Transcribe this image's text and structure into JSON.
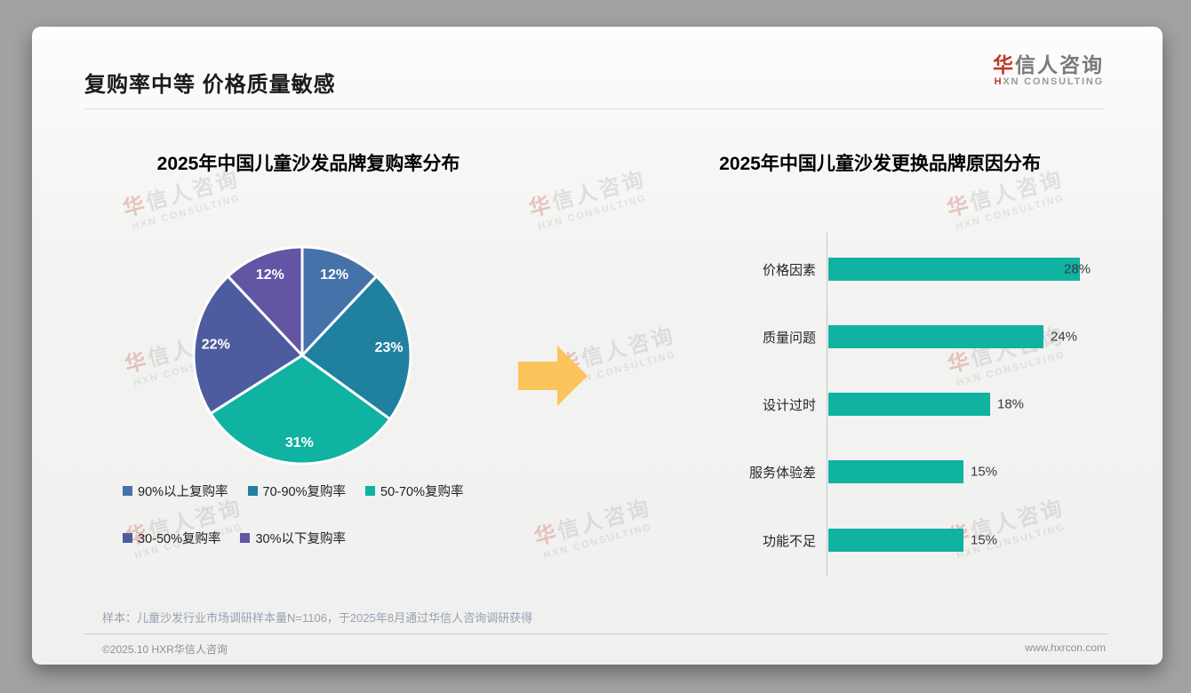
{
  "page": {
    "title": "复购率中等 价格质量敏感",
    "logo": {
      "cn_first": "华",
      "cn_rest": "信人咨询",
      "en_first": "H",
      "en_rest": "XN CONSULTING"
    },
    "watermark": {
      "cn_first": "华",
      "cn_rest": "信人咨询",
      "en": "HXN CONSULTING"
    },
    "sample_note": "样本：儿童沙发行业市场调研样本量N=1106，于2025年8月通过华信人咨询调研获得",
    "footer_left": "©2025.10 HXR华信人咨询",
    "footer_right": "www.hxrcon.com"
  },
  "arrow": {
    "direction": "right",
    "color": "#FBC45C"
  },
  "chart_data": [
    {
      "type": "pie",
      "title": "2025年中国儿童沙发品牌复购率分布",
      "labels": [
        "90%以上复购率",
        "70-90%复购率",
        "50-70%复购率",
        "30-50%复购率",
        "30%以下复购率"
      ],
      "values": [
        12,
        23,
        31,
        22,
        12
      ],
      "value_labels": [
        "12%",
        "23%",
        "31%",
        "22%",
        "12%"
      ],
      "colors": [
        "#4573a9",
        "#20809f",
        "#10b2a2",
        "#4d5c9f",
        "#6155a4"
      ],
      "start_angle": "top",
      "direction": "clockwise",
      "slice_border_color": "#ffffff",
      "legend_position": "bottom"
    },
    {
      "type": "bar",
      "orientation": "horizontal",
      "title": "2025年中国儿童沙发更换品牌原因分布",
      "categories": [
        "价格因素",
        "质量问题",
        "设计过时",
        "服务体验差",
        "功能不足"
      ],
      "values": [
        28,
        24,
        18,
        15,
        15
      ],
      "value_labels": [
        "28%",
        "24%",
        "18%",
        "15%",
        "15%"
      ],
      "bar_color": "#10b2a2",
      "xlim": [
        0,
        30
      ],
      "grid": false
    }
  ]
}
